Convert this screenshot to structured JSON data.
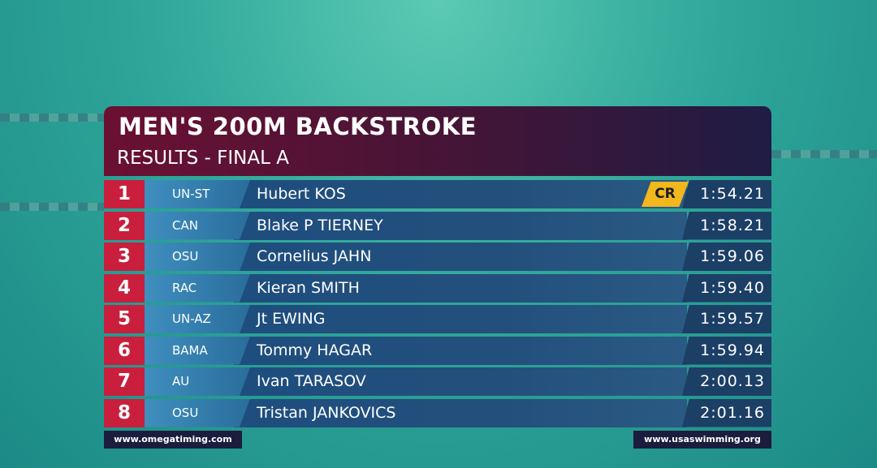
{
  "header": {
    "title": "MEN'S 200M BACKSTROKE",
    "subtitle": "RESULTS - FINAL A"
  },
  "results": {
    "rows": [
      {
        "place": 1,
        "team": "UN-ST",
        "name": "Hubert KOS",
        "record": "CR",
        "time": "1:54.21"
      },
      {
        "place": 2,
        "team": "CAN",
        "name": "Blake P TIERNEY",
        "time": "1:58.21"
      },
      {
        "place": 3,
        "team": "OSU",
        "name": "Cornelius JAHN",
        "time": "1:59.06"
      },
      {
        "place": 4,
        "team": "RAC",
        "name": "Kieran SMITH",
        "time": "1:59.40"
      },
      {
        "place": 5,
        "team": "UN-AZ",
        "name": "Jt EWING",
        "time": "1:59.57"
      },
      {
        "place": 6,
        "team": "BAMA",
        "name": "Tommy HAGAR",
        "time": "1:59.94"
      },
      {
        "place": 7,
        "team": "AU",
        "name": "Ivan TARASOV",
        "time": "2:00.13"
      },
      {
        "place": 8,
        "team": "OSU",
        "name": "Tristan JANKOVICS",
        "time": "2:01.16"
      }
    ]
  },
  "footer": {
    "left": "www.omegatiming.com",
    "right": "www.usaswimming.org"
  }
}
